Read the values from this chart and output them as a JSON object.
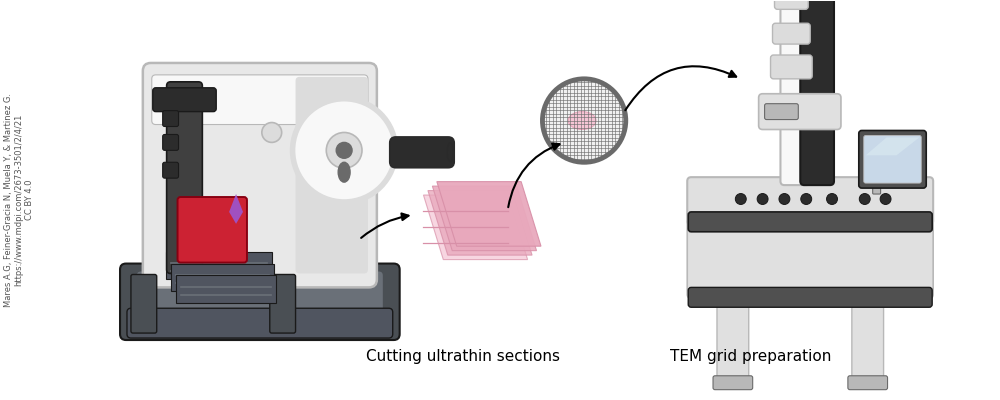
{
  "background_color": "#ffffff",
  "label1": "Cutting ultrathin sections",
  "label2": "TEM grid preparation",
  "label_fontsize": 11,
  "citation_lines": [
    "Mares A.G, Feiner-Gracia N, Muela Y, & Martinez G.",
    "https://www.mdpi.com/2673-3501/2/4/21",
    "CC BY 4.0"
  ],
  "citation_fontsize": 6.0,
  "fig_width": 10.0,
  "fig_height": 4.0,
  "dpi": 100
}
